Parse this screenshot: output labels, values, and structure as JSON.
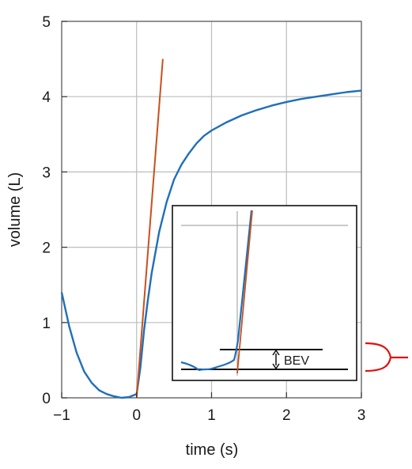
{
  "chart_data": {
    "type": "line",
    "xlabel": "time (s)",
    "ylabel": "volume (L)",
    "xlim": [
      -1,
      3
    ],
    "ylim": [
      0,
      5
    ],
    "x_ticks": [
      "−1",
      "0",
      "1",
      "2",
      "3"
    ],
    "y_ticks": [
      "0",
      "1",
      "2",
      "3",
      "4",
      "5"
    ],
    "grid": true,
    "colors": {
      "volume": "#1f6fb8",
      "back_extrapolation": "#c8501e",
      "bracket": "#e01010"
    },
    "series": [
      {
        "x": [
          -1.0,
          -0.9,
          -0.8,
          -0.7,
          -0.6,
          -0.5,
          -0.4,
          -0.3,
          -0.2,
          -0.1,
          0.0,
          0.05,
          0.1,
          0.15,
          0.2,
          0.3,
          0.4,
          0.5,
          0.6,
          0.7,
          0.8,
          0.9,
          1.0,
          1.2,
          1.4,
          1.6,
          1.8,
          2.0,
          2.2,
          2.4,
          2.6,
          2.8,
          3.0
        ],
        "y": [
          1.4,
          0.95,
          0.6,
          0.35,
          0.2,
          0.1,
          0.05,
          0.02,
          0.0,
          0.01,
          0.05,
          0.4,
          0.9,
          1.3,
          1.65,
          2.2,
          2.6,
          2.9,
          3.1,
          3.25,
          3.38,
          3.48,
          3.55,
          3.66,
          3.75,
          3.82,
          3.88,
          3.93,
          3.97,
          4.0,
          4.03,
          4.06,
          4.08
        ]
      },
      {
        "x": [
          0.0,
          0.35
        ],
        "y": [
          0.0,
          4.5
        ]
      }
    ],
    "inset": {
      "annotation": "BEV"
    }
  }
}
